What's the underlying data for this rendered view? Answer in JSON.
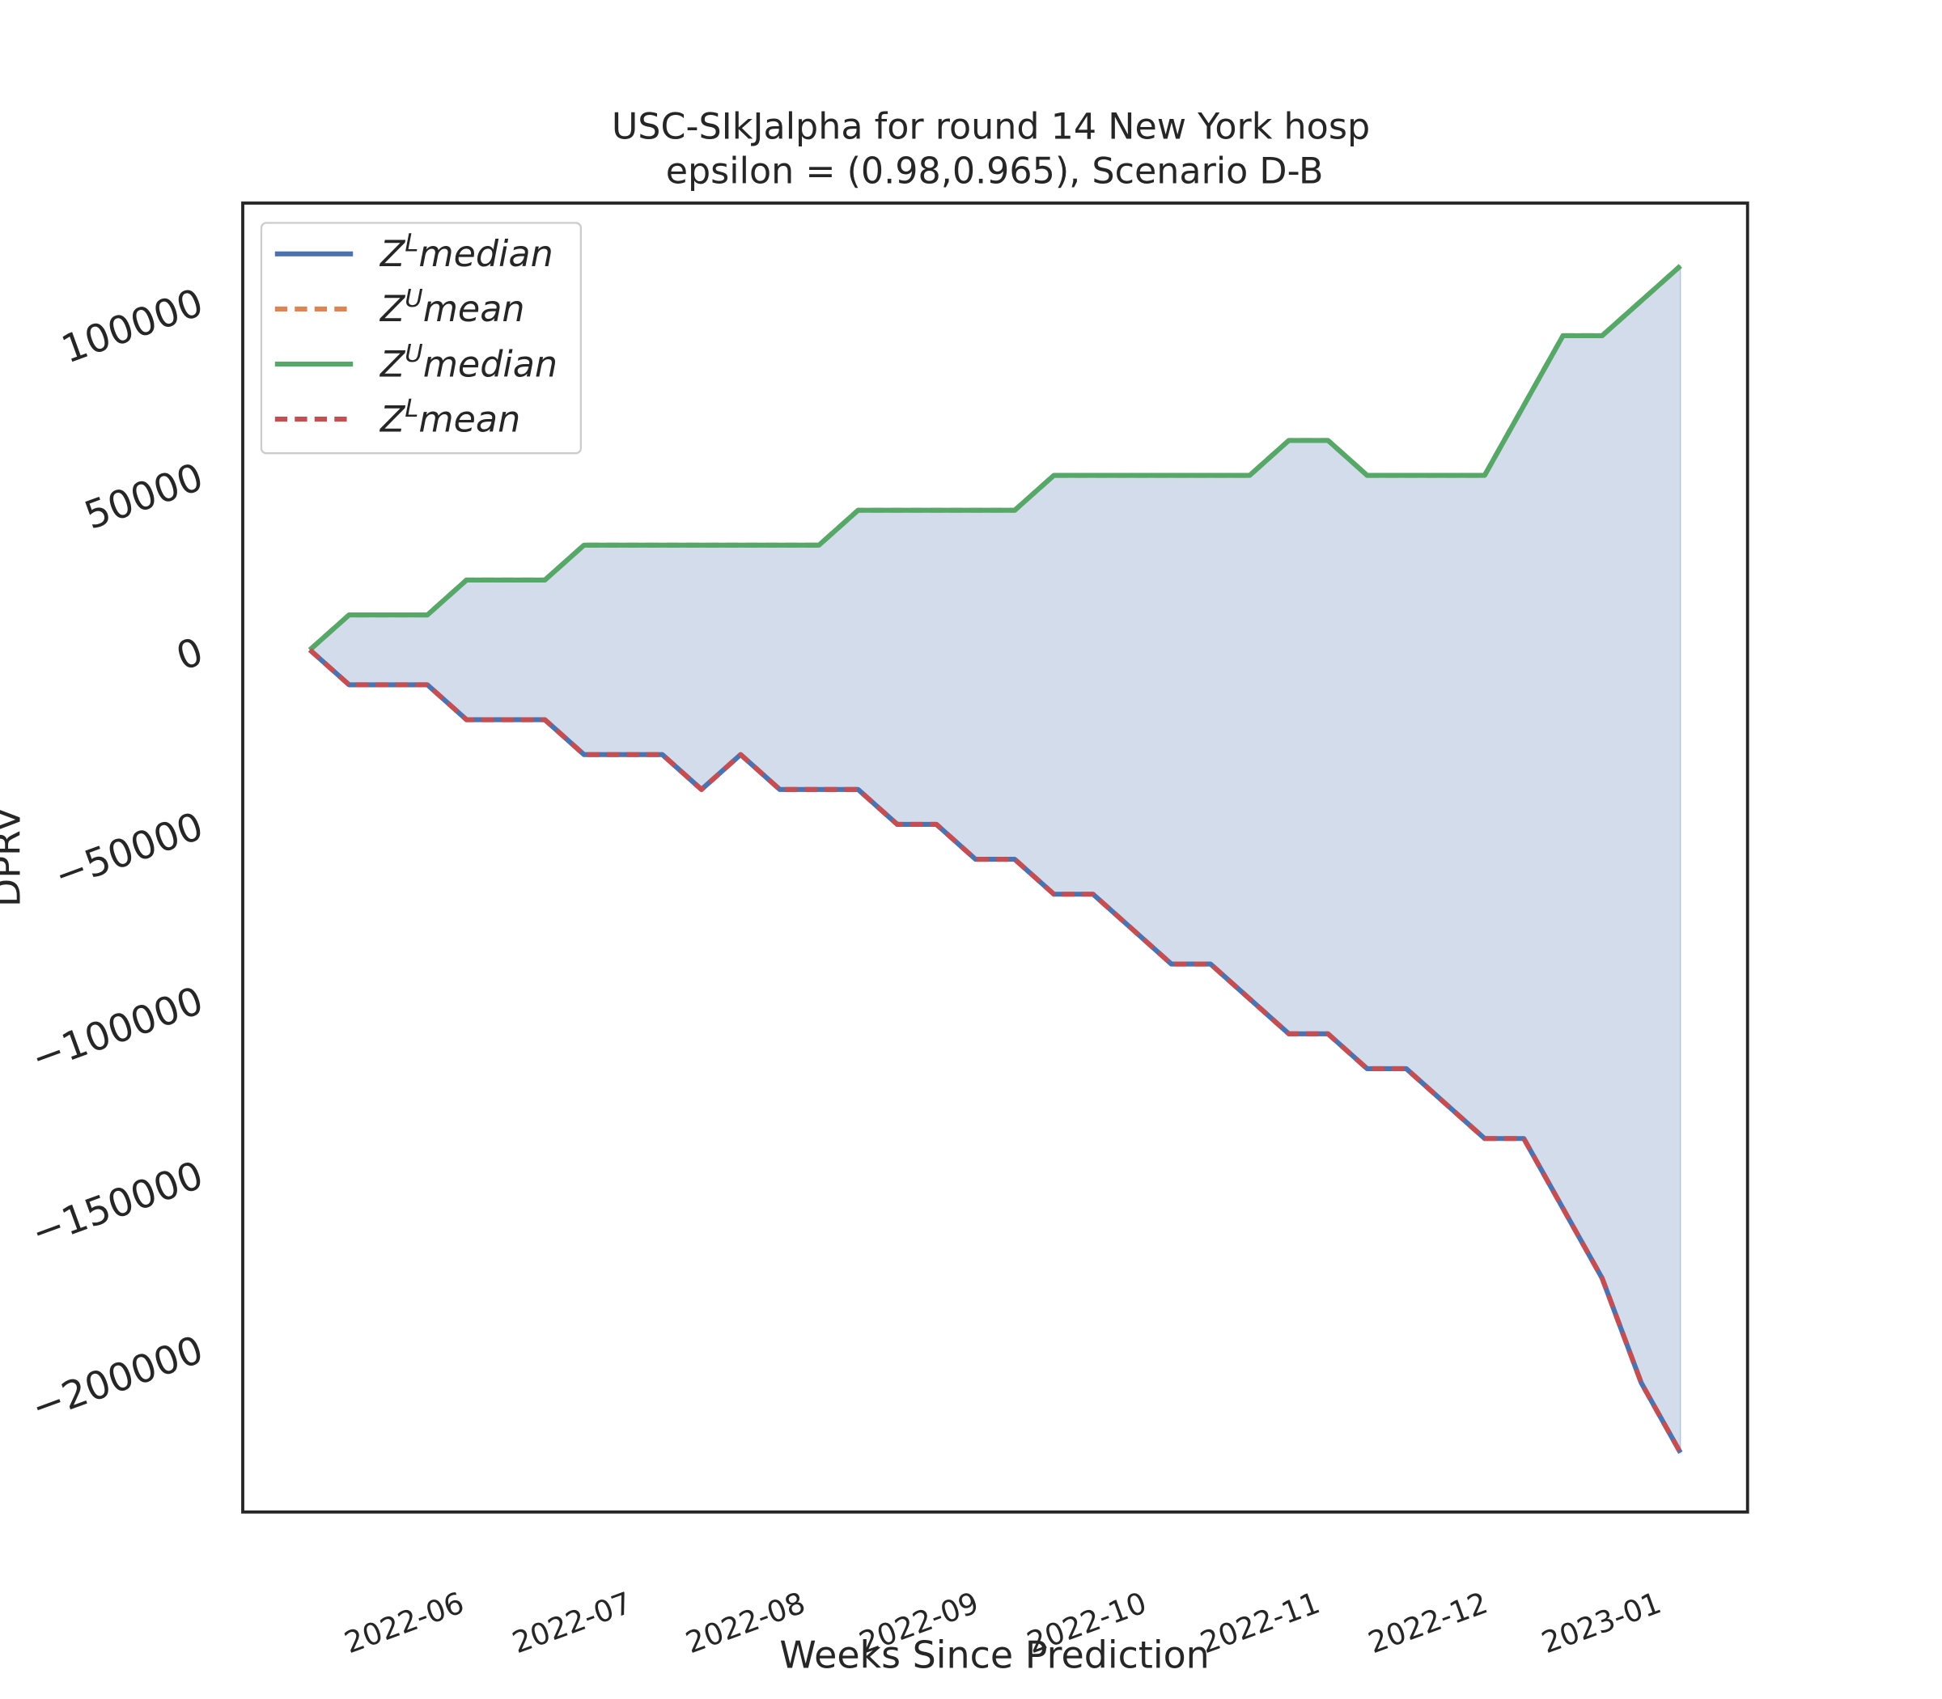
{
  "chart_data": {
    "type": "line",
    "title": "USC-SIkJalpha for round 14 New York  hosp",
    "subtitle": "epsilon = (0.98,0.965), Scenario D-B",
    "x_label": "Weeks Since Prediction",
    "y_label": "DPRV",
    "x": [
      "2022-05-01",
      "2022-05-08",
      "2022-05-15",
      "2022-05-22",
      "2022-05-29",
      "2022-06-05",
      "2022-06-12",
      "2022-06-19",
      "2022-06-26",
      "2022-07-03",
      "2022-07-10",
      "2022-07-17",
      "2022-07-24",
      "2022-07-31",
      "2022-08-07",
      "2022-08-14",
      "2022-08-21",
      "2022-08-28",
      "2022-09-04",
      "2022-09-11",
      "2022-09-18",
      "2022-09-25",
      "2022-10-02",
      "2022-10-09",
      "2022-10-16",
      "2022-10-23",
      "2022-10-30",
      "2022-11-06",
      "2022-11-13",
      "2022-11-20",
      "2022-11-27",
      "2022-12-04",
      "2022-12-11",
      "2022-12-18",
      "2022-12-25",
      "2023-01-01"
    ],
    "series": [
      {
        "name": "ZLmedian",
        "color": "#4c72b0",
        "dash": false,
        "values": [
          0,
          -10000,
          -10000,
          -10000,
          -20000,
          -20000,
          -20000,
          -30000,
          -30000,
          -30000,
          -40000,
          -30000,
          -40000,
          -40000,
          -40000,
          -50000,
          -50000,
          -60000,
          -60000,
          -70000,
          -70000,
          -80000,
          -90000,
          -90000,
          -100000,
          -110000,
          -110000,
          -120000,
          -120000,
          -130000,
          -140000,
          -140000,
          -160000,
          -180000,
          -210000,
          -230000
        ]
      },
      {
        "name": "ZUmean",
        "color": "#dd8452",
        "dash": true,
        "values": [
          0,
          10000,
          10000,
          10000,
          20000,
          20000,
          20000,
          30000,
          30000,
          30000,
          30000,
          30000,
          30000,
          30000,
          40000,
          40000,
          40000,
          40000,
          40000,
          50000,
          50000,
          50000,
          50000,
          50000,
          50000,
          60000,
          60000,
          50000,
          50000,
          50000,
          50000,
          70000,
          90000,
          90000,
          100000,
          110000
        ]
      },
      {
        "name": "ZUmedian",
        "color": "#55a868",
        "dash": false,
        "values": [
          0,
          10000,
          10000,
          10000,
          20000,
          20000,
          20000,
          30000,
          30000,
          30000,
          30000,
          30000,
          30000,
          30000,
          40000,
          40000,
          40000,
          40000,
          40000,
          50000,
          50000,
          50000,
          50000,
          50000,
          50000,
          60000,
          60000,
          50000,
          50000,
          50000,
          50000,
          70000,
          90000,
          90000,
          100000,
          110000
        ]
      },
      {
        "name": "ZLmean",
        "color": "#c44e52",
        "dash": true,
        "values": [
          0,
          -10000,
          -10000,
          -10000,
          -20000,
          -20000,
          -20000,
          -30000,
          -30000,
          -30000,
          -40000,
          -30000,
          -40000,
          -40000,
          -40000,
          -50000,
          -50000,
          -60000,
          -60000,
          -70000,
          -70000,
          -80000,
          -90000,
          -90000,
          -100000,
          -110000,
          -110000,
          -120000,
          -120000,
          -130000,
          -140000,
          -140000,
          -160000,
          -180000,
          -210000,
          -230000
        ]
      }
    ],
    "fill_between": {
      "lower": 0,
      "upper": 2,
      "color": "#4c72b0"
    },
    "xlim": [
      "2022-04-19",
      "2023-01-13"
    ],
    "xticks": [
      {
        "value": "2022-06-01",
        "label": "2022-06"
      },
      {
        "value": "2022-07-01",
        "label": "2022-07"
      },
      {
        "value": "2022-08-01",
        "label": "2022-08"
      },
      {
        "value": "2022-09-01",
        "label": "2022-09"
      },
      {
        "value": "2022-10-01",
        "label": "2022-10"
      },
      {
        "value": "2022-11-01",
        "label": "2022-11"
      },
      {
        "value": "2022-12-01",
        "label": "2022-12"
      },
      {
        "value": "2023-01-01",
        "label": "2023-01"
      }
    ],
    "ylim": [
      -247000,
      128000
    ],
    "yticks": [
      {
        "value": -200000,
        "label": "−200000"
      },
      {
        "value": -150000,
        "label": "−150000"
      },
      {
        "value": -100000,
        "label": "−100000"
      },
      {
        "value": -50000,
        "label": "−50000"
      },
      0,
      50000,
      100000
    ],
    "grid": false,
    "legend": "upper left"
  }
}
